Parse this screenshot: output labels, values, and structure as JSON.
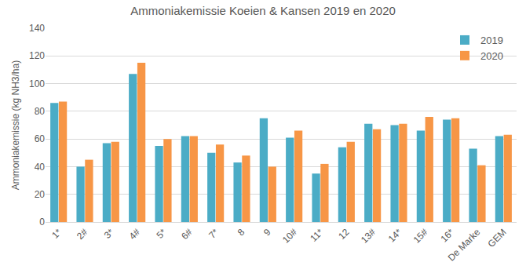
{
  "chart_data": {
    "type": "bar",
    "title": "Ammoniakemissie Koeien & Kansen 2019 en 2020",
    "y_label": "Ammoniakemissie (kg NH3/ha)",
    "categories": [
      "1*",
      "2#",
      "3*",
      "4#",
      "5*",
      "6#",
      "7*",
      "8",
      "9",
      "10#",
      "11*",
      "12",
      "13#",
      "14*",
      "15#",
      "16*",
      "De Marke",
      "GEM"
    ],
    "series": [
      {
        "name": "2019",
        "color": "#4bacc6",
        "values": [
          86,
          40,
          57,
          107,
          55,
          62,
          50,
          43,
          75,
          61,
          35,
          54,
          71,
          70,
          66,
          74,
          53,
          62
        ]
      },
      {
        "name": "2020",
        "color": "#f79646",
        "values": [
          87,
          45,
          58,
          115,
          60,
          62,
          56,
          48,
          40,
          66,
          42,
          58,
          67,
          71,
          76,
          75,
          41,
          63
        ]
      }
    ],
    "ylim": [
      0,
      140
    ],
    "yticks": [
      0,
      20,
      40,
      60,
      80,
      100,
      120,
      140
    ],
    "grid": true,
    "legend": "topright"
  }
}
